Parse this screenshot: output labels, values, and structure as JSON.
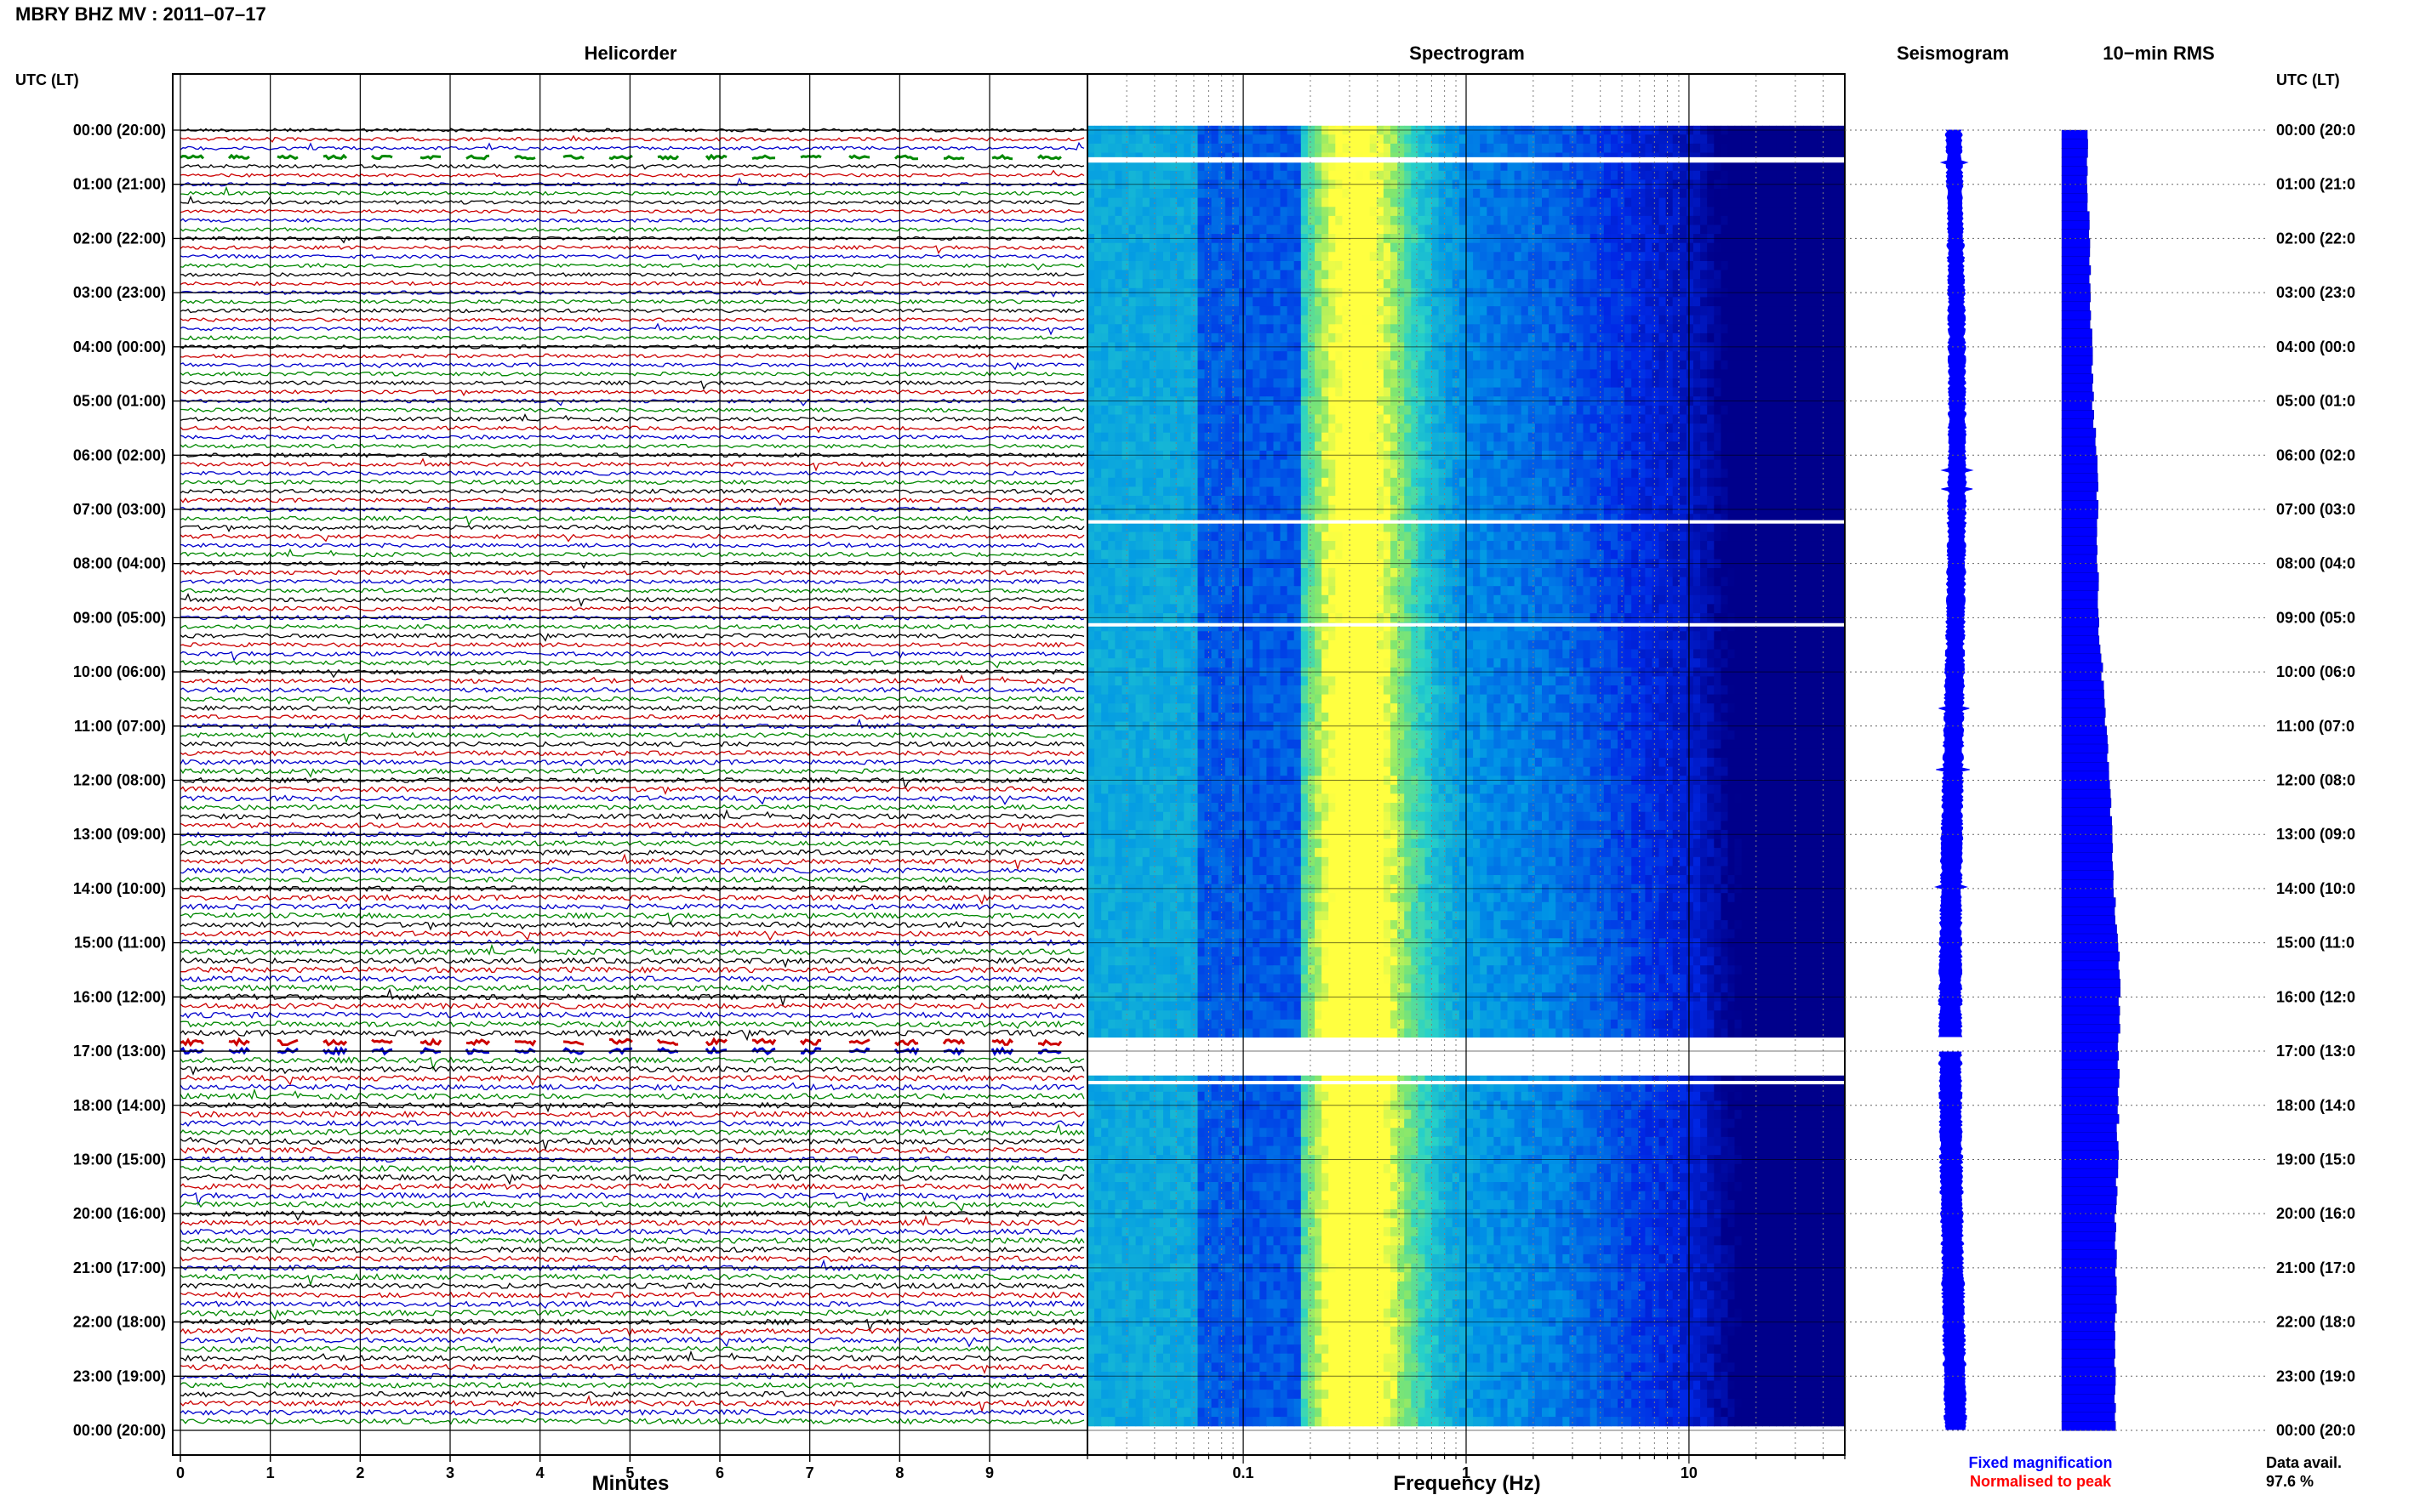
{
  "header": {
    "title": "MBRY BHZ MV : 2011–07–17",
    "left_axis_label": "UTC (LT)",
    "right_axis_label": "UTC (LT)"
  },
  "panels": {
    "helicorder": "Helicorder",
    "spectrogram": "Spectrogram",
    "seismogram": "Seismogram",
    "rms": "10−min RMS"
  },
  "axes": {
    "minutes_label": "Minutes",
    "frequency_label": "Frequency (Hz)"
  },
  "legend": {
    "fixed": "Fixed magnification",
    "normalised": "Normalised to peak",
    "fixed_color": "#0000ff",
    "normalised_color": "#ff0000"
  },
  "data_availability": {
    "label": "Data avail.",
    "value": "97.6 %"
  },
  "colors": {
    "trace_cycle": [
      "#000000",
      "#cc0000",
      "#0000cc",
      "#008800"
    ],
    "spectrogram_low": "#00008b",
    "spectrogram_high": "#ffff40",
    "rms_fill": "#0000ff"
  },
  "chart_data": [
    {
      "type": "line",
      "name": "helicorder",
      "title": "Helicorder",
      "xlabel": "Minutes",
      "xlim": [
        0,
        10
      ],
      "x_ticks": [
        0,
        1,
        2,
        3,
        4,
        5,
        6,
        7,
        8,
        9
      ],
      "rows_per_hour": 6,
      "hours": 24,
      "y_tick_labels_left": [
        "00:00 (20:00)",
        "01:00 (21:00)",
        "02:00 (22:00)",
        "03:00 (23:00)",
        "04:00 (00:00)",
        "05:00 (01:00)",
        "06:00 (02:00)",
        "07:00 (03:00)",
        "08:00 (04:00)",
        "09:00 (05:00)",
        "10:00 (06:00)",
        "11:00 (07:00)",
        "12:00 (08:00)",
        "13:00 (09:00)",
        "14:00 (10:00)",
        "15:00 (11:00)",
        "16:00 (12:00)",
        "17:00 (13:00)",
        "18:00 (14:00)",
        "19:00 (15:00)",
        "20:00 (16:00)",
        "21:00 (17:00)",
        "22:00 (18:00)",
        "23:00 (19:00)",
        "00:00 (20:00)"
      ],
      "y_tick_labels_right": [
        "00:00 (20:0",
        "01:00 (21:0",
        "02:00 (22:0",
        "03:00 (23:0",
        "04:00 (00:0",
        "05:00 (01:0",
        "06:00 (02:0",
        "07:00 (03:0",
        "08:00 (04:0",
        "09:00 (05:0",
        "10:00 (06:0",
        "11:00 (07:0",
        "12:00 (08:0",
        "13:00 (09:0",
        "14:00 (10:0",
        "15:00 (11:0",
        "16:00 (12:0",
        "17:00 (13:0",
        "18:00 (14:0",
        "19:00 (15:0",
        "20:00 (16:0",
        "21:00 (17:0",
        "22:00 (18:0",
        "23:00 (19:0",
        "00:00 (20:0"
      ],
      "gap_rows": [
        3,
        101,
        102
      ]
    },
    {
      "type": "heatmap",
      "name": "spectrogram",
      "title": "Spectrogram",
      "xlabel": "Frequency (Hz)",
      "x_scale": "log",
      "xlim": [
        0.02,
        50
      ],
      "x_tick_labels": [
        "0.1",
        "1",
        "10"
      ],
      "x_tick_values": [
        0.1,
        1,
        10
      ],
      "gap_hours": [
        [
          0.5,
          0.6
        ],
        [
          7.2,
          7.25
        ],
        [
          9.1,
          9.15
        ],
        [
          16.75,
          17.45
        ],
        [
          17.55,
          17.6
        ]
      ],
      "peak_frequency_hz": 0.3
    },
    {
      "type": "line",
      "name": "seismogram",
      "title": "Seismogram",
      "ylim_hours": [
        0,
        24
      ],
      "gap_hours": [
        16.75,
        17.0
      ]
    },
    {
      "type": "bar",
      "name": "rms_10min",
      "title": "10−min RMS",
      "orientation": "horizontal",
      "bins_per_hour": 6,
      "hourly_relative_level": [
        0.43,
        0.45,
        0.47,
        0.5,
        0.52,
        0.54,
        0.6,
        0.62,
        0.62,
        0.64,
        0.7,
        0.76,
        0.82,
        0.86,
        0.9,
        0.98,
        1.0,
        0.98,
        0.97,
        0.96,
        0.92,
        0.94,
        0.93,
        0.92
      ]
    }
  ]
}
